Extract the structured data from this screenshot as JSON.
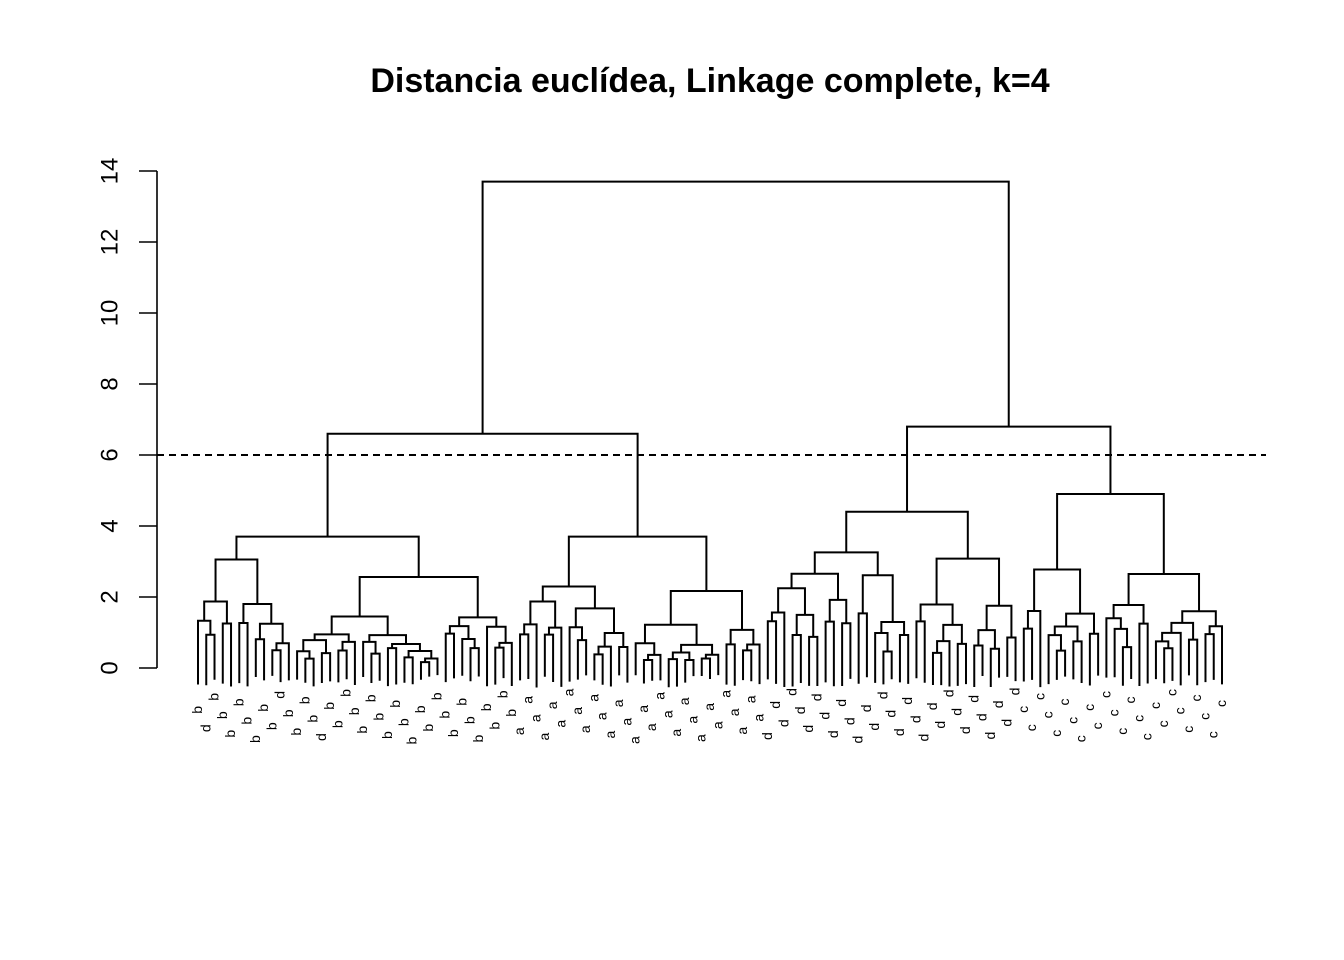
{
  "chart_data": {
    "type": "dendrogram",
    "title": "Distancia euclídea, Linkage complete, k=4",
    "xlabel": "",
    "ylabel": "",
    "ylim": [
      0,
      14
    ],
    "y_ticks": [
      0,
      2,
      4,
      6,
      8,
      10,
      12,
      14
    ],
    "cut_height": 6,
    "k": 4,
    "root_height": 13.7,
    "clusters": [
      {
        "label": "b",
        "height": 3.7,
        "leaves": [
          "b",
          "d",
          "b",
          "b",
          "b",
          "b",
          "b",
          "b",
          "b",
          "b",
          "d",
          "b",
          "b",
          "b",
          "b",
          "d",
          "b",
          "b",
          "b",
          "b",
          "b",
          "b",
          "b",
          "b",
          "b",
          "b",
          "b",
          "b",
          "b",
          "b",
          "b",
          "b",
          "b",
          "b",
          "b",
          "b",
          "b",
          "b",
          "b"
        ]
      },
      {
        "label": "a",
        "height": 3.7,
        "leaves": [
          "a",
          "a",
          "a",
          "a",
          "a",
          "a",
          "a",
          "a",
          "a",
          "a",
          "a",
          "a",
          "a",
          "a",
          "a",
          "a",
          "a",
          "a",
          "a",
          "a",
          "a",
          "a",
          "a",
          "a",
          "a",
          "a",
          "a",
          "a",
          "a",
          "a"
        ]
      },
      {
        "label": "d",
        "height": 4.4,
        "leaves": [
          "d",
          "d",
          "d",
          "d",
          "d",
          "d",
          "d",
          "d",
          "d",
          "d",
          "d",
          "d",
          "d",
          "d",
          "d",
          "d",
          "d",
          "d",
          "d",
          "d",
          "d",
          "d",
          "d",
          "d",
          "d",
          "d",
          "d",
          "d",
          "d",
          "d",
          "d"
        ]
      },
      {
        "label": "c",
        "height": 4.9,
        "leaves": [
          "c",
          "c",
          "c",
          "c",
          "c",
          "c",
          "c",
          "c",
          "c",
          "c",
          "c",
          "c",
          "c",
          "c",
          "c",
          "c",
          "c",
          "c",
          "c",
          "c",
          "c",
          "c",
          "c",
          "c",
          "c"
        ]
      }
    ],
    "merges": [
      {
        "left": "b",
        "right": "a",
        "height": 6.6
      },
      {
        "left": "d",
        "right": "c",
        "height": 6.8
      },
      {
        "left": "b+a",
        "right": "d+c",
        "height": 13.7
      }
    ]
  }
}
